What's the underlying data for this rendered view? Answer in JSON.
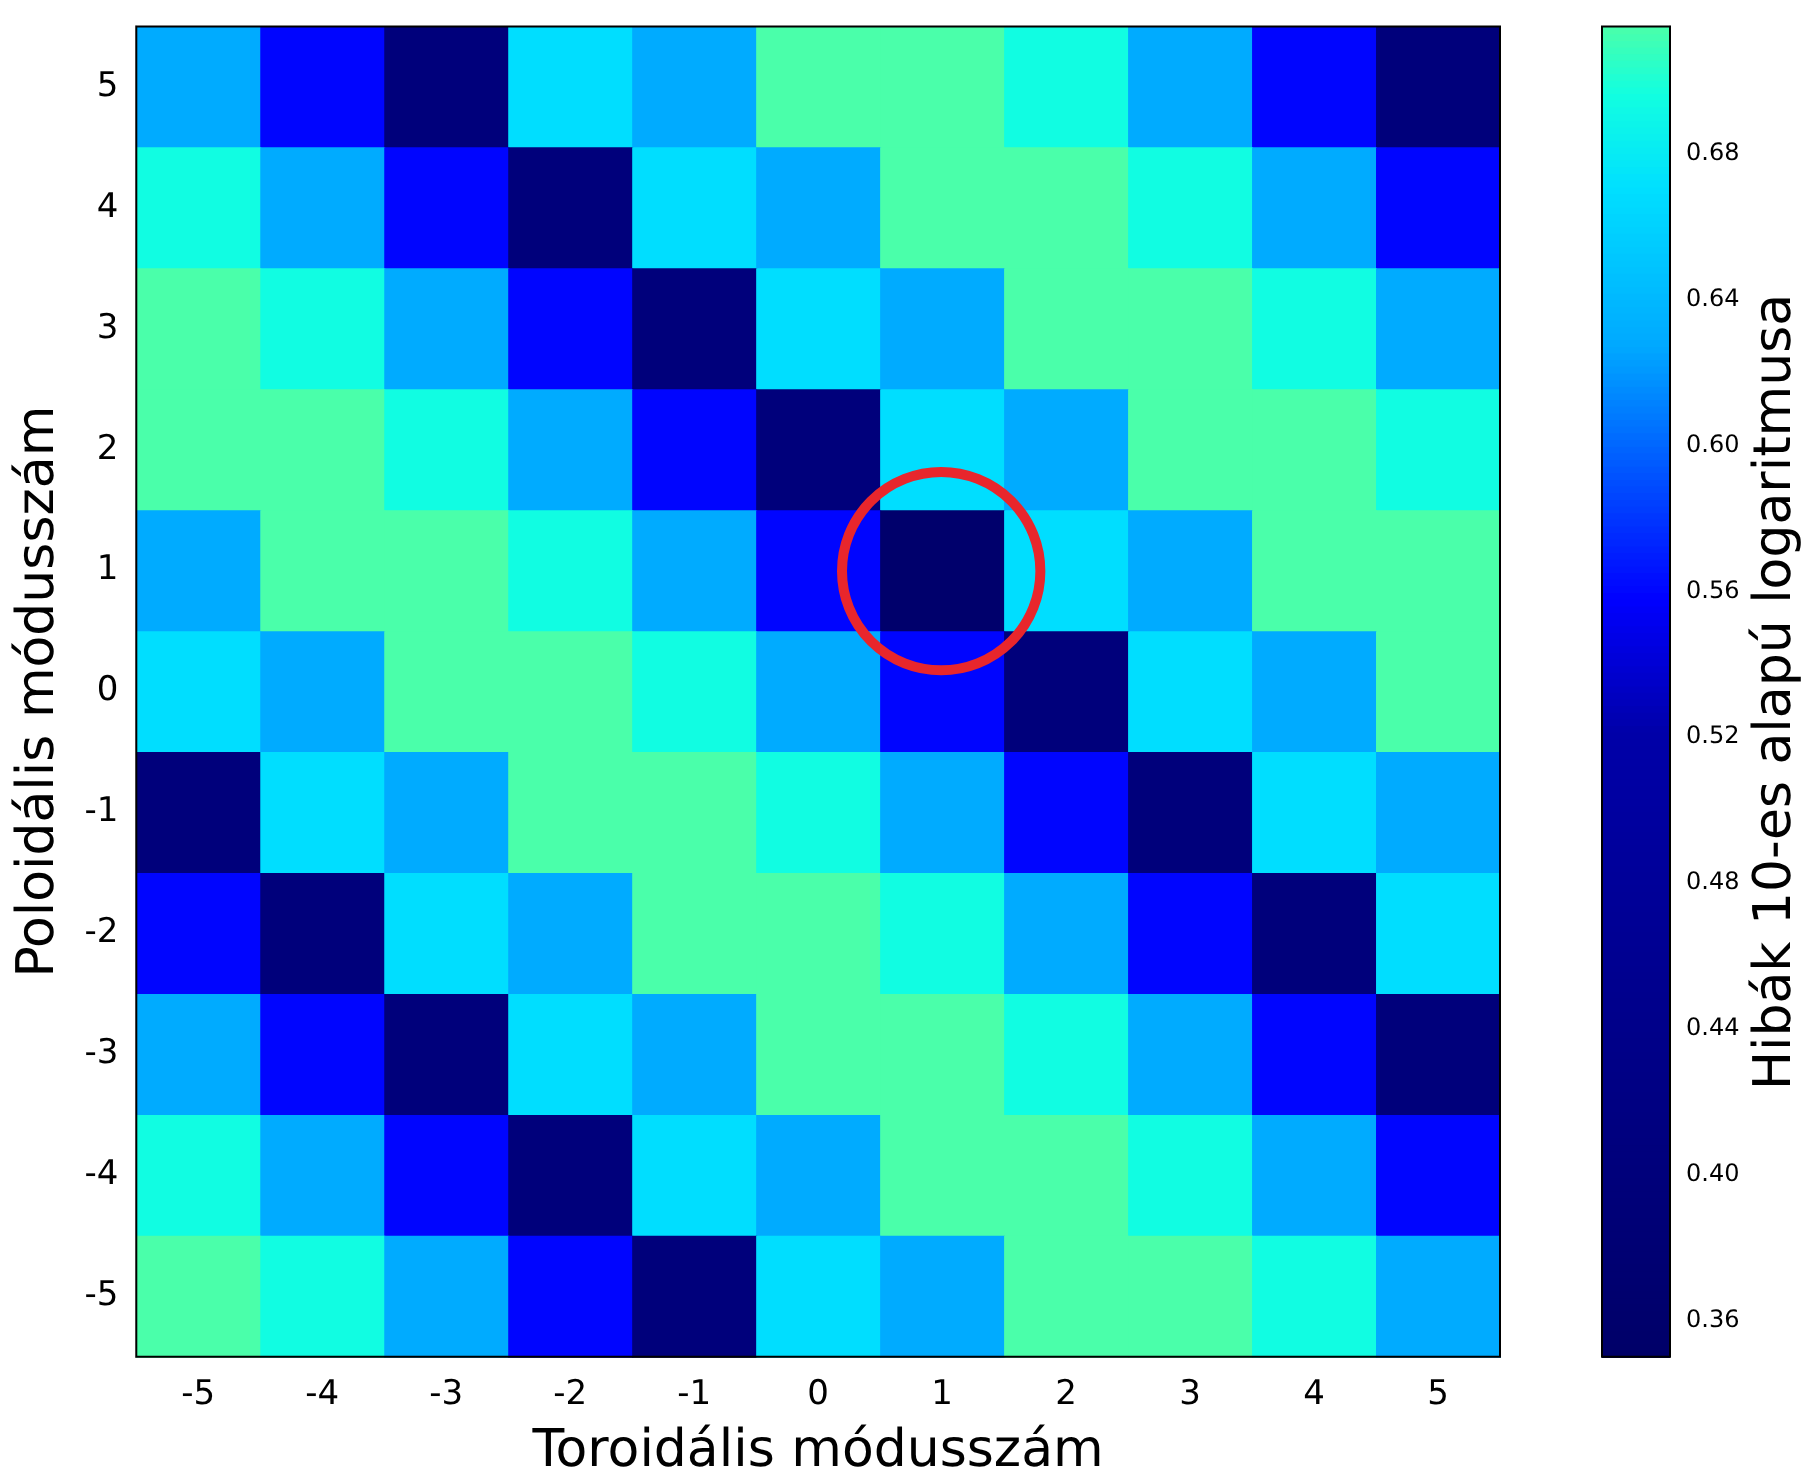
{
  "chart_data": {
    "type": "heatmap",
    "xlabel": "Toroidális módusszám",
    "ylabel": "Poloidális módusszám",
    "clabel": "Hibák 10-es alapú logaritmusa",
    "categories": [
      "-5",
      "-4",
      "-3",
      "-2",
      "-1",
      "0",
      "1",
      "2",
      "3",
      "4",
      "5"
    ],
    "y_categories": [
      "5",
      "4",
      "3",
      "2",
      "1",
      "0",
      "-1",
      "-2",
      "-3",
      "-4",
      "-5"
    ],
    "cells": [
      [
        0.63,
        0.56,
        0.4,
        0.67,
        0.63,
        0.715,
        0.715,
        0.695,
        0.63,
        0.56,
        0.4
      ],
      [
        0.695,
        0.63,
        0.56,
        0.4,
        0.67,
        0.63,
        0.715,
        0.715,
        0.695,
        0.63,
        0.56
      ],
      [
        0.715,
        0.695,
        0.63,
        0.56,
        0.4,
        0.67,
        0.63,
        0.715,
        0.715,
        0.695,
        0.63
      ],
      [
        0.715,
        0.715,
        0.695,
        0.63,
        0.56,
        0.4,
        0.67,
        0.63,
        0.715,
        0.715,
        0.695
      ],
      [
        0.63,
        0.715,
        0.715,
        0.695,
        0.63,
        0.56,
        0.36,
        0.67,
        0.63,
        0.715,
        0.715
      ],
      [
        0.67,
        0.63,
        0.715,
        0.715,
        0.695,
        0.63,
        0.56,
        0.4,
        0.67,
        0.63,
        0.715
      ],
      [
        0.4,
        0.67,
        0.63,
        0.715,
        0.715,
        0.695,
        0.63,
        0.56,
        0.4,
        0.67,
        0.63
      ],
      [
        0.56,
        0.4,
        0.67,
        0.63,
        0.715,
        0.715,
        0.695,
        0.63,
        0.56,
        0.4,
        0.67
      ],
      [
        0.63,
        0.56,
        0.4,
        0.67,
        0.63,
        0.715,
        0.715,
        0.695,
        0.63,
        0.56,
        0.4
      ],
      [
        0.695,
        0.63,
        0.56,
        0.4,
        0.67,
        0.63,
        0.715,
        0.715,
        0.695,
        0.63,
        0.56
      ],
      [
        0.715,
        0.695,
        0.63,
        0.56,
        0.4,
        0.67,
        0.63,
        0.715,
        0.715,
        0.695,
        0.63
      ]
    ],
    "clim": [
      0.35,
      0.715
    ],
    "cticks": [
      0.36,
      {
        "value": 0.4,
        "label": "0.40"
      },
      0.44,
      0.48,
      0.52,
      0.56,
      {
        "value": 0.6,
        "label": "0.60"
      },
      0.64,
      0.68
    ]
  }
}
